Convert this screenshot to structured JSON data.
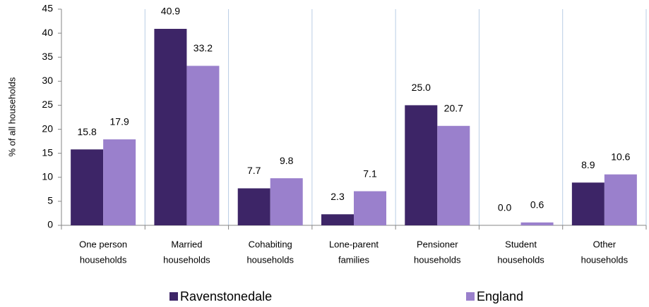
{
  "chart_data": {
    "type": "bar",
    "y_label": "% of all households",
    "categories": [
      [
        "One person",
        "households"
      ],
      [
        "Married",
        "households"
      ],
      [
        "Cohabiting",
        "households"
      ],
      [
        "Lone-parent",
        "families"
      ],
      [
        "Pensioner",
        "households"
      ],
      [
        "Student",
        "households"
      ],
      [
        "Other",
        "households"
      ]
    ],
    "series": [
      {
        "name": "Ravenstonedale",
        "color": "#3d2567",
        "values": [
          15.8,
          40.9,
          7.7,
          2.3,
          25.0,
          0.0,
          8.9
        ],
        "value_labels": [
          "15.8",
          "40.9",
          "7.7",
          "2.3",
          "25.0",
          "0.0",
          "8.9"
        ]
      },
      {
        "name": "England",
        "color": "#9a80cc",
        "values": [
          17.9,
          33.2,
          9.8,
          7.1,
          20.7,
          0.6,
          10.6
        ],
        "value_labels": [
          "17.9",
          "33.2",
          "9.8",
          "7.1",
          "20.7",
          "0.6",
          "10.6"
        ]
      }
    ],
    "ylim": [
      0,
      45
    ],
    "yticks": [
      0,
      5,
      10,
      15,
      20,
      25,
      30,
      35,
      40,
      45
    ],
    "grid": true
  }
}
